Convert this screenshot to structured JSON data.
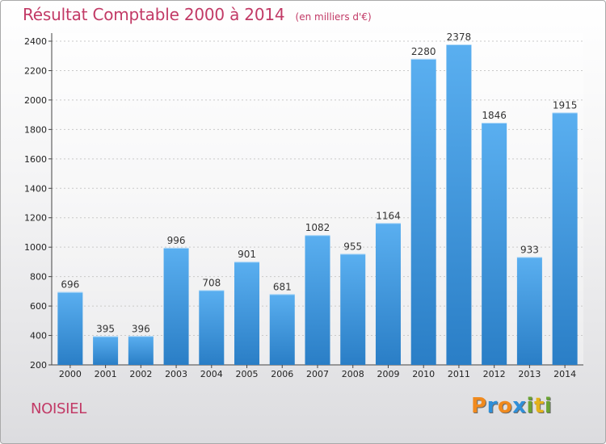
{
  "header": {
    "title": "Résultat Comptable 2000 à 2014",
    "unit": "(en milliers d'€)"
  },
  "footer": {
    "place": "NOISIEL",
    "logo": [
      "P",
      "r",
      "o",
      "x",
      "i",
      "t",
      "i"
    ]
  },
  "colors": {
    "title": "#c23a66",
    "bar_light": "#5aaff0",
    "bar_dark": "#2a7ec6",
    "logo": [
      "#f08a1e",
      "#2f8fd8",
      "#f08a1e",
      "#2f8fd8",
      "#6aa332",
      "#e3b21a",
      "#6aa332"
    ]
  },
  "chart_data": {
    "type": "bar",
    "title": "Résultat Comptable 2000 à 2014",
    "categories": [
      "2000",
      "2001",
      "2002",
      "2003",
      "2004",
      "2005",
      "2006",
      "2007",
      "2008",
      "2009",
      "2010",
      "2011",
      "2012",
      "2013",
      "2014"
    ],
    "values": [
      696,
      395,
      396,
      996,
      708,
      901,
      681,
      1082,
      955,
      1164,
      2280,
      2378,
      1846,
      933,
      1915
    ],
    "ylim": [
      200,
      2400
    ],
    "yticks": [
      200,
      400,
      600,
      800,
      1000,
      1200,
      1400,
      1600,
      1800,
      2000,
      2200,
      2400
    ],
    "grid": true
  }
}
